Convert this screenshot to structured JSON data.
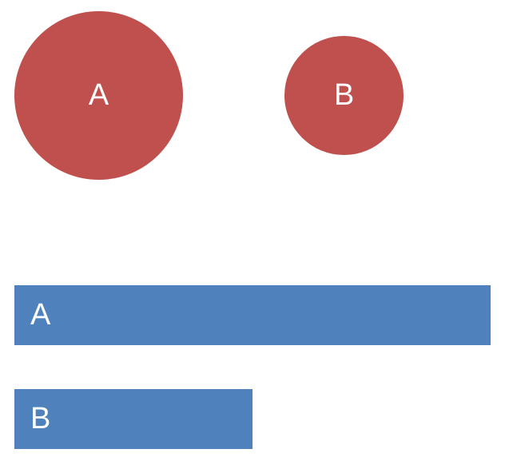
{
  "circles": {
    "color": "#c0504d",
    "items": [
      {
        "label": "A"
      },
      {
        "label": "B"
      }
    ]
  },
  "bars": {
    "color": "#4f81bd",
    "items": [
      {
        "label": "A",
        "relative_value": 1.0
      },
      {
        "label": "B",
        "relative_value": 0.5
      }
    ]
  }
}
